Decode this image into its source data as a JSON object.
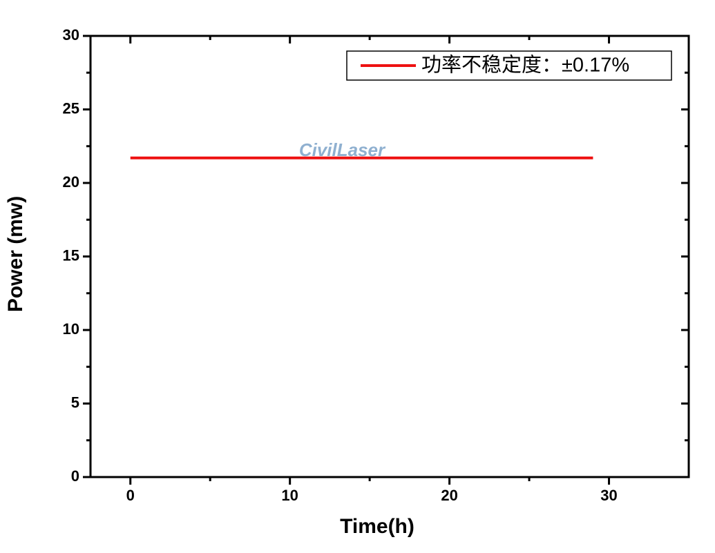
{
  "chart_data": {
    "type": "line",
    "xlabel": "Time(h)",
    "ylabel": "Power (mw)",
    "x": [
      0,
      29
    ],
    "series": [
      {
        "name": "功率不稳定度：±0.17%",
        "color": "#ee1111",
        "values": [
          21.7,
          21.7
        ]
      }
    ],
    "xlim": [
      -2.5,
      35
    ],
    "xticks": [
      0,
      10,
      20,
      30
    ],
    "xminorticks": [
      5,
      15,
      25
    ],
    "ylim": [
      0,
      30
    ],
    "yticks": [
      0,
      5,
      10,
      15,
      20,
      25,
      30
    ],
    "yminorticks": [
      2.5,
      7.5,
      12.5,
      17.5,
      22.5,
      27.5
    ],
    "legend": "upper right",
    "grid": false,
    "watermark": "CivilLaser"
  }
}
